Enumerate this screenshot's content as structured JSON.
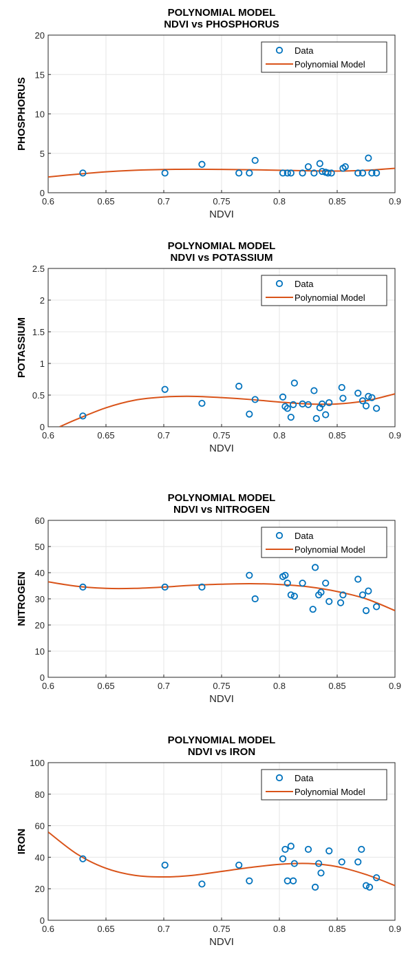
{
  "colors": {
    "data_marker": "#0072BD",
    "model_line": "#D95319",
    "grid": "#e6e6e6",
    "axis": "#262626"
  },
  "chart_data": [
    {
      "type": "scatter",
      "title": "POLYNOMIAL MODEL",
      "subtitle": "NDVI vs PHOSPHORUS",
      "xlabel": "NDVI",
      "ylabel": "PHOSPHORUS",
      "xlim": [
        0.6,
        0.9
      ],
      "ylim": [
        0,
        20
      ],
      "xticks": [
        0.6,
        0.65,
        0.7,
        0.75,
        0.8,
        0.85,
        0.9
      ],
      "yticks": [
        0,
        5,
        10,
        15,
        20
      ],
      "xtick_labels": [
        "0.6",
        "0.65",
        "0.7",
        "0.75",
        "0.8",
        "0.85",
        "0.9"
      ],
      "ytick_labels": [
        "0",
        "5",
        "10",
        "15",
        "20"
      ],
      "grid": true,
      "legend": {
        "position": "top-right",
        "entries": [
          "Data",
          "Polynomial Model"
        ]
      },
      "series": [
        {
          "name": "Data",
          "kind": "markers",
          "x": [
            0.63,
            0.701,
            0.733,
            0.765,
            0.774,
            0.779,
            0.803,
            0.807,
            0.81,
            0.82,
            0.825,
            0.83,
            0.835,
            0.837,
            0.84,
            0.842,
            0.845,
            0.855,
            0.857,
            0.868,
            0.872,
            0.877,
            0.88,
            0.884
          ],
          "y": [
            2.5,
            2.5,
            3.6,
            2.5,
            2.5,
            4.1,
            2.5,
            2.5,
            2.5,
            2.5,
            3.3,
            2.5,
            3.7,
            2.7,
            2.6,
            2.5,
            2.5,
            3.1,
            3.3,
            2.5,
            2.5,
            4.4,
            2.5,
            2.5
          ]
        },
        {
          "name": "Polynomial Model",
          "kind": "line",
          "x": [
            0.6,
            0.625,
            0.65,
            0.675,
            0.7,
            0.725,
            0.75,
            0.775,
            0.8,
            0.825,
            0.85,
            0.875,
            0.9
          ],
          "y": [
            2.0,
            2.35,
            2.65,
            2.85,
            2.95,
            2.98,
            2.96,
            2.92,
            2.85,
            2.78,
            2.75,
            2.85,
            3.1
          ]
        }
      ]
    },
    {
      "type": "scatter",
      "title": "POLYNOMIAL MODEL",
      "subtitle": "NDVI vs POTASSIUM",
      "xlabel": "NDVI",
      "ylabel": "POTASSIUM",
      "xlim": [
        0.6,
        0.9
      ],
      "ylim": [
        0,
        2.5
      ],
      "xticks": [
        0.6,
        0.65,
        0.7,
        0.75,
        0.8,
        0.85,
        0.9
      ],
      "yticks": [
        0,
        0.5,
        1,
        1.5,
        2,
        2.5
      ],
      "xtick_labels": [
        "0.6",
        "0.65",
        "0.7",
        "0.75",
        "0.8",
        "0.85",
        "0.9"
      ],
      "ytick_labels": [
        "0",
        "0.5",
        "1",
        "1.5",
        "2",
        "2.5"
      ],
      "grid": true,
      "legend": {
        "position": "top-right",
        "entries": [
          "Data",
          "Polynomial Model"
        ]
      },
      "series": [
        {
          "name": "Data",
          "kind": "markers",
          "x": [
            0.63,
            0.701,
            0.733,
            0.765,
            0.774,
            0.779,
            0.803,
            0.805,
            0.807,
            0.81,
            0.812,
            0.813,
            0.82,
            0.825,
            0.83,
            0.832,
            0.835,
            0.837,
            0.84,
            0.843,
            0.854,
            0.855,
            0.868,
            0.872,
            0.875,
            0.877,
            0.88,
            0.884
          ],
          "y": [
            0.17,
            0.59,
            0.37,
            0.64,
            0.2,
            0.43,
            0.47,
            0.32,
            0.29,
            0.15,
            0.35,
            0.69,
            0.36,
            0.35,
            0.57,
            0.13,
            0.3,
            0.36,
            0.19,
            0.38,
            0.62,
            0.45,
            0.53,
            0.41,
            0.33,
            0.48,
            0.46,
            0.29
          ]
        },
        {
          "name": "Polynomial Model",
          "kind": "line",
          "x": [
            0.61,
            0.625,
            0.65,
            0.675,
            0.7,
            0.725,
            0.75,
            0.775,
            0.8,
            0.825,
            0.85,
            0.875,
            0.9
          ],
          "y": [
            0.0,
            0.12,
            0.3,
            0.42,
            0.47,
            0.48,
            0.46,
            0.43,
            0.39,
            0.36,
            0.36,
            0.41,
            0.52
          ]
        }
      ]
    },
    {
      "type": "scatter",
      "title": "POLYNOMIAL MODEL",
      "subtitle": "NDVI vs NITROGEN",
      "xlabel": "NDVI",
      "ylabel": "NITROGEN",
      "xlim": [
        0.6,
        0.9
      ],
      "ylim": [
        0,
        60
      ],
      "xticks": [
        0.6,
        0.65,
        0.7,
        0.75,
        0.8,
        0.85,
        0.9
      ],
      "yticks": [
        0,
        10,
        20,
        30,
        40,
        50,
        60
      ],
      "xtick_labels": [
        "0.6",
        "0.65",
        "0.7",
        "0.75",
        "0.8",
        "0.85",
        "0.9"
      ],
      "ytick_labels": [
        "0",
        "10",
        "20",
        "30",
        "40",
        "50",
        "60"
      ],
      "grid": true,
      "legend": {
        "position": "top-right",
        "entries": [
          "Data",
          "Polynomial Model"
        ]
      },
      "series": [
        {
          "name": "Data",
          "kind": "markers",
          "x": [
            0.63,
            0.701,
            0.733,
            0.774,
            0.779,
            0.803,
            0.805,
            0.807,
            0.81,
            0.813,
            0.82,
            0.829,
            0.831,
            0.834,
            0.836,
            0.84,
            0.843,
            0.853,
            0.855,
            0.868,
            0.872,
            0.875,
            0.877,
            0.884
          ],
          "y": [
            34.5,
            34.5,
            34.5,
            39,
            30,
            38.5,
            39,
            36,
            31.5,
            31,
            36,
            26,
            42,
            31.5,
            32.5,
            36,
            29,
            28.5,
            31.5,
            37.5,
            31.5,
            25.5,
            33,
            27
          ]
        },
        {
          "name": "Polynomial Model",
          "kind": "line",
          "x": [
            0.6,
            0.625,
            0.65,
            0.675,
            0.7,
            0.725,
            0.75,
            0.775,
            0.8,
            0.825,
            0.85,
            0.875,
            0.9
          ],
          "y": [
            36.5,
            34.8,
            34.0,
            34.0,
            34.5,
            35.2,
            35.6,
            35.8,
            35.5,
            34.6,
            32.8,
            30.0,
            25.5
          ]
        }
      ]
    },
    {
      "type": "scatter",
      "title": "POLYNOMIAL MODEL",
      "subtitle": "NDVI vs IRON",
      "xlabel": "NDVI",
      "ylabel": "IRON",
      "xlim": [
        0.6,
        0.9
      ],
      "ylim": [
        0,
        100
      ],
      "xticks": [
        0.6,
        0.65,
        0.7,
        0.75,
        0.8,
        0.85,
        0.9
      ],
      "yticks": [
        0,
        20,
        40,
        60,
        80,
        100
      ],
      "xtick_labels": [
        "0.6",
        "0.65",
        "0.7",
        "0.75",
        "0.8",
        "0.85",
        "0.9"
      ],
      "ytick_labels": [
        "0",
        "20",
        "40",
        "60",
        "80",
        "100"
      ],
      "grid": true,
      "legend": {
        "position": "top-right",
        "entries": [
          "Data",
          "Polynomial Model"
        ]
      },
      "series": [
        {
          "name": "Data",
          "kind": "markers",
          "x": [
            0.63,
            0.701,
            0.733,
            0.765,
            0.774,
            0.803,
            0.805,
            0.807,
            0.81,
            0.812,
            0.813,
            0.825,
            0.831,
            0.834,
            0.836,
            0.843,
            0.854,
            0.868,
            0.871,
            0.875,
            0.878,
            0.884
          ],
          "y": [
            39,
            35,
            23,
            35,
            25,
            39,
            45,
            25,
            47,
            25,
            36,
            45,
            21,
            36,
            30,
            44,
            37,
            37,
            45,
            22,
            21,
            27
          ]
        },
        {
          "name": "Polynomial Model",
          "kind": "line",
          "x": [
            0.6,
            0.625,
            0.65,
            0.675,
            0.7,
            0.725,
            0.75,
            0.775,
            0.8,
            0.825,
            0.85,
            0.875,
            0.9
          ],
          "y": [
            56,
            42,
            33,
            28.5,
            27.5,
            28.5,
            31,
            33.5,
            35.5,
            36,
            34,
            29,
            22
          ]
        }
      ]
    }
  ]
}
